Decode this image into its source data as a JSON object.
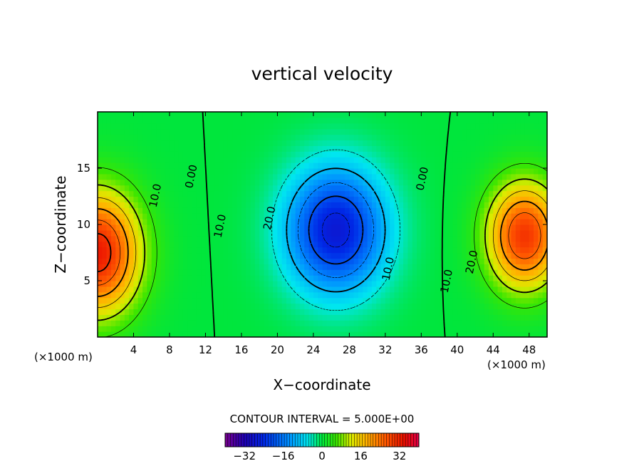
{
  "chart_data": {
    "type": "heatmap",
    "title": "vertical velocity",
    "xlabel": "X−coordinate",
    "ylabel": "Z−coordinate",
    "x_unit_left": "(×1000 m)",
    "x_unit_right": "(×1000 m)",
    "xlim": [
      0,
      50
    ],
    "ylim": [
      0,
      20
    ],
    "x_ticks": [
      4,
      8,
      12,
      16,
      20,
      24,
      28,
      32,
      36,
      40,
      44,
      48
    ],
    "x_tick_labels": [
      "4",
      "8",
      "12",
      "16",
      "20",
      "24",
      "28",
      "32",
      "36",
      "40",
      "44",
      "48"
    ],
    "y_ticks": [
      5,
      10,
      15
    ],
    "y_tick_labels": [
      "5",
      "10",
      "15"
    ],
    "contour_interval_text": "CONTOUR INTERVAL = 5.000E+00",
    "colorbar": {
      "min": -40,
      "max": 40,
      "ticks": [
        -32,
        -16,
        0,
        16,
        32
      ],
      "tick_labels": [
        "−32",
        "−16",
        "0",
        "16",
        "32"
      ]
    },
    "contour_labels": [
      {
        "text": "10.0",
        "x": 6.8,
        "z": 12.5
      },
      {
        "text": "0.00",
        "x": 10.8,
        "z": 14.2
      },
      {
        "text": "10.0",
        "x": 14,
        "z": 9.8
      },
      {
        "text": "20.0",
        "x": 19.5,
        "z": 10.5
      },
      {
        "text": "10.0",
        "x": 32.7,
        "z": 6
      },
      {
        "text": "0.00",
        "x": 36.5,
        "z": 14
      },
      {
        "text": "10.0",
        "x": 39.2,
        "z": 4.9
      },
      {
        "text": "20.0",
        "x": 42,
        "z": 6.6
      }
    ],
    "features": [
      {
        "kind": "updraft",
        "x": 0,
        "z": 7.5,
        "peak": 33,
        "sx": 4.8,
        "sz": 5.5
      },
      {
        "kind": "updraft",
        "x": 47.5,
        "z": 9,
        "peak": 30,
        "sx": 4.2,
        "sz": 4.8
      },
      {
        "kind": "downdraft",
        "x": 26.5,
        "z": 9.5,
        "peak": -27,
        "sx": 5.5,
        "sz": 5.5
      }
    ]
  }
}
